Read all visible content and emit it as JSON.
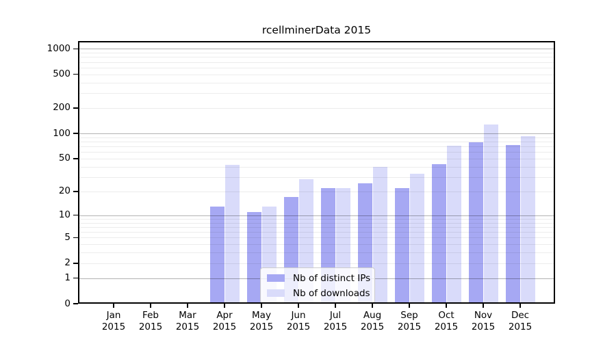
{
  "chart_data": {
    "type": "bar",
    "title": "rcellminerData 2015",
    "year_label": "2015",
    "categories": [
      "Jan",
      "Feb",
      "Mar",
      "Apr",
      "May",
      "Jun",
      "Jul",
      "Aug",
      "Sep",
      "Oct",
      "Nov",
      "Dec"
    ],
    "series": [
      {
        "name": "Nb of distinct IPs",
        "color": "#a6a8f3",
        "values": [
          0,
          0,
          0,
          13,
          11,
          17,
          22,
          25,
          22,
          43,
          78,
          73
        ]
      },
      {
        "name": "Nb of downloads",
        "color": "#d9dbfa",
        "values": [
          0,
          0,
          0,
          42,
          13,
          28,
          22,
          40,
          33,
          72,
          128,
          93
        ]
      }
    ],
    "y_ticks": [
      0,
      1,
      2,
      5,
      10,
      20,
      50,
      100,
      200,
      500,
      1000
    ],
    "y_major_gridlines": [
      1,
      10,
      100,
      1000
    ],
    "scale": "log1p",
    "ylim": [
      0,
      1250
    ],
    "xlabel": "",
    "ylabel": "",
    "grid": true,
    "legend_position": "lower center"
  }
}
